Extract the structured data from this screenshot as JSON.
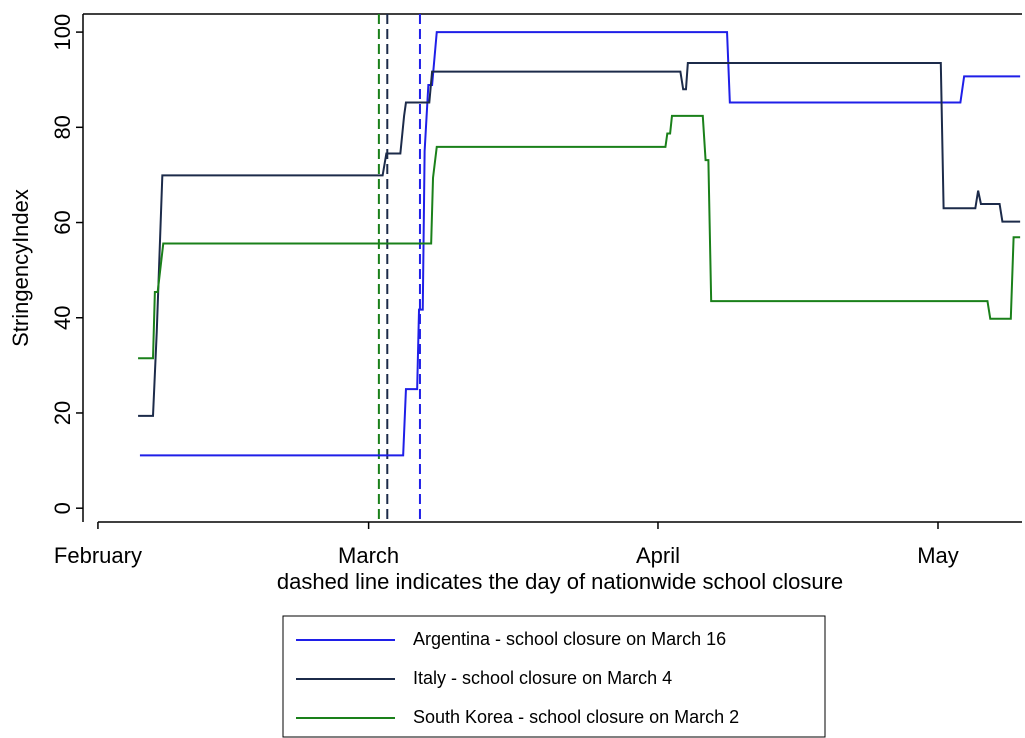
{
  "chart_data": {
    "type": "line",
    "x_label": "dashed line indicates the day of nationwide school closure",
    "y_label": "StringencyIndex",
    "xlim": [
      -0.6,
      100
    ],
    "xticks": [
      {
        "value": 1,
        "label": "February"
      },
      {
        "value": 30,
        "label": "March"
      },
      {
        "value": 61,
        "label": "April"
      },
      {
        "value": 91,
        "label": "May"
      }
    ],
    "ylim": [
      -2.9,
      103.8
    ],
    "yticks": [
      0,
      20,
      40,
      60,
      80,
      100
    ],
    "grid": false,
    "legend": "bottom",
    "series": [
      {
        "name": "Argentina - school closure on March 16",
        "color": "#1f1fe8",
        "closure_x": 35.5,
        "x": [
          5.5,
          33.7,
          34,
          35.2,
          35.4,
          35.8,
          36,
          36.4,
          36.8,
          37.3,
          68.4,
          68.7,
          93.4,
          93.8,
          99.8
        ],
        "values": [
          11.1,
          11.1,
          25,
          25,
          41.7,
          41.7,
          75,
          88.9,
          88.9,
          100,
          100,
          85.2,
          85.2,
          90.7,
          90.7
        ]
      },
      {
        "name": "Italy - school closure on March 4",
        "color": "#1c2b4a",
        "closure_x": 32,
        "x": [
          5.3,
          6.9,
          7.3,
          7.9,
          31.5,
          31.9,
          33.4,
          33.8,
          34,
          36.5,
          36.8,
          63.4,
          63.7,
          64,
          64.2,
          91.3,
          91.6,
          95,
          95.3,
          95.6,
          97.6,
          97.9,
          99.8
        ],
        "values": [
          19.4,
          19.4,
          37,
          69.9,
          69.9,
          74.5,
          74.5,
          82.4,
          85.2,
          85.2,
          91.7,
          91.7,
          88,
          88,
          93.5,
          93.5,
          63,
          63,
          66.7,
          63.9,
          63.9,
          60.2,
          60.2
        ]
      },
      {
        "name": "South Korea - school closure on March 2",
        "color": "#1a801a",
        "closure_x": 31.1,
        "x": [
          5.3,
          6.9,
          7.1,
          7.4,
          8,
          36.7,
          36.9,
          37.3,
          61.8,
          62,
          62.3,
          62.5,
          65.8,
          66.1,
          66.4,
          66.7,
          96.3,
          96.6,
          98.8,
          99.1,
          99.8
        ],
        "values": [
          31.5,
          31.5,
          45.4,
          45.4,
          55.6,
          55.6,
          69.4,
          75.9,
          75.9,
          78.7,
          78.7,
          82.4,
          82.4,
          73.1,
          73.1,
          43.5,
          43.5,
          39.8,
          39.8,
          56.9,
          56.9
        ]
      }
    ]
  }
}
